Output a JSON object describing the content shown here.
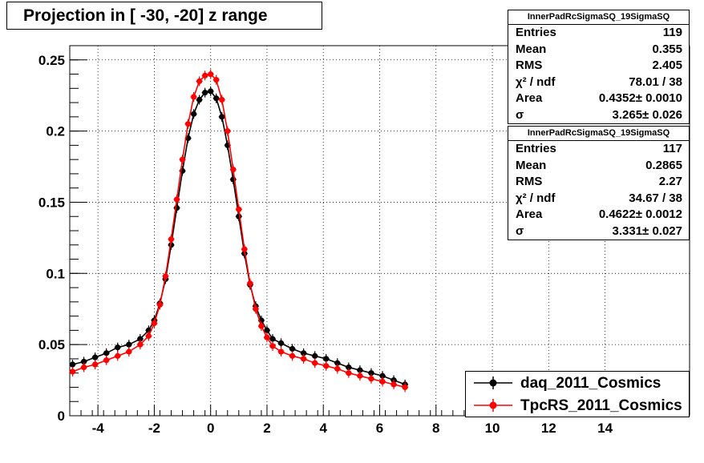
{
  "title": "Projection in [ -30, -20] z range",
  "stats_boxes": [
    {
      "header": "InnerPadRcSigmaSQ_19SigmaSQ",
      "rows": [
        {
          "key": "Entries",
          "value": "119"
        },
        {
          "key": "Mean",
          "value": "0.355"
        },
        {
          "key": "RMS",
          "value": "2.405"
        },
        {
          "key": "χ² / ndf",
          "value": "78.01 / 38"
        },
        {
          "key": "Area",
          "value": "0.4352± 0.0010"
        },
        {
          "key": "σ",
          "value": "3.265± 0.026"
        }
      ]
    },
    {
      "header": "InnerPadRcSigmaSQ_19SigmaSQ",
      "rows": [
        {
          "key": "Entries",
          "value": "117"
        },
        {
          "key": "Mean",
          "value": "0.2865"
        },
        {
          "key": "RMS",
          "value": "2.27"
        },
        {
          "key": "χ² / ndf",
          "value": "34.67 / 38"
        },
        {
          "key": "Area",
          "value": "0.4622± 0.0012"
        },
        {
          "key": "σ",
          "value": "3.331± 0.027"
        }
      ]
    }
  ],
  "legend": [
    {
      "label": "daq_2011_Cosmics",
      "color": "#000000"
    },
    {
      "label": "TpcRS_2011_Cosmics",
      "color": "#ff0000"
    }
  ],
  "chart_data": {
    "type": "scatter",
    "title": "Projection in [ -30, -20] z range",
    "xlim": [
      -5,
      17
    ],
    "ylim": [
      0,
      0.26
    ],
    "x_ticks": [
      -4,
      -2,
      0,
      2,
      4,
      6,
      8,
      10,
      12,
      14
    ],
    "y_ticks": [
      0,
      0.05,
      0.1,
      0.15,
      0.2,
      0.25
    ],
    "x_tick_labels": [
      "-4",
      "-2",
      "0",
      "2",
      "4",
      "6",
      "8",
      "10",
      "12",
      "14"
    ],
    "y_tick_labels": [
      "0",
      "0.05",
      "0.1",
      "0.15",
      "0.2",
      "0.25"
    ],
    "grid": true,
    "legend_position": "bottom-right",
    "series": [
      {
        "name": "daq_2011_Cosmics",
        "color": "#000000",
        "x": [
          -4.9,
          -4.5,
          -4.1,
          -3.7,
          -3.3,
          -2.9,
          -2.5,
          -2.2,
          -2.0,
          -1.8,
          -1.6,
          -1.4,
          -1.2,
          -1.0,
          -0.8,
          -0.6,
          -0.4,
          -0.2,
          0.0,
          0.2,
          0.4,
          0.6,
          0.8,
          1.0,
          1.2,
          1.4,
          1.6,
          1.8,
          2.0,
          2.2,
          2.5,
          2.9,
          3.3,
          3.7,
          4.1,
          4.5,
          4.9,
          5.3,
          5.7,
          6.1,
          6.5,
          6.9
        ],
        "y": [
          0.036,
          0.038,
          0.041,
          0.044,
          0.048,
          0.05,
          0.054,
          0.06,
          0.067,
          0.079,
          0.096,
          0.12,
          0.146,
          0.172,
          0.195,
          0.212,
          0.222,
          0.227,
          0.228,
          0.223,
          0.21,
          0.19,
          0.166,
          0.14,
          0.114,
          0.092,
          0.077,
          0.067,
          0.06,
          0.054,
          0.051,
          0.047,
          0.044,
          0.042,
          0.04,
          0.037,
          0.034,
          0.032,
          0.03,
          0.028,
          0.025,
          0.022
        ]
      },
      {
        "name": "TpcRS_2011_Cosmics",
        "color": "#ff0000",
        "x": [
          -4.9,
          -4.5,
          -4.1,
          -3.7,
          -3.3,
          -2.9,
          -2.5,
          -2.2,
          -2.0,
          -1.8,
          -1.6,
          -1.4,
          -1.2,
          -1.0,
          -0.8,
          -0.6,
          -0.4,
          -0.2,
          0.0,
          0.2,
          0.4,
          0.6,
          0.8,
          1.0,
          1.2,
          1.4,
          1.6,
          1.8,
          2.0,
          2.2,
          2.5,
          2.9,
          3.3,
          3.7,
          4.1,
          4.5,
          4.9,
          5.3,
          5.7,
          6.1,
          6.5,
          6.9
        ],
        "y": [
          0.031,
          0.034,
          0.036,
          0.039,
          0.042,
          0.045,
          0.05,
          0.056,
          0.065,
          0.078,
          0.098,
          0.124,
          0.152,
          0.18,
          0.205,
          0.224,
          0.235,
          0.239,
          0.24,
          0.236,
          0.222,
          0.2,
          0.173,
          0.145,
          0.117,
          0.093,
          0.075,
          0.063,
          0.055,
          0.049,
          0.045,
          0.042,
          0.04,
          0.037,
          0.035,
          0.033,
          0.03,
          0.028,
          0.026,
          0.024,
          0.022,
          0.02
        ]
      }
    ]
  }
}
